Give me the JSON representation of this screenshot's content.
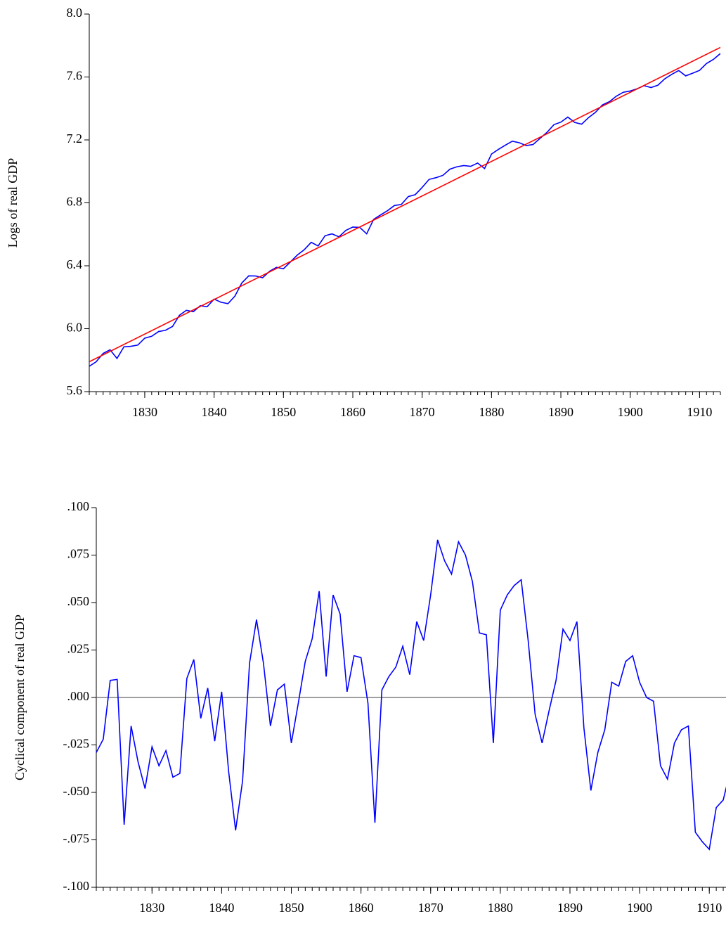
{
  "chart_data": [
    {
      "type": "line",
      "y_label": "Logs of real GDP",
      "x": [
        1822,
        1823,
        1824,
        1825,
        1826,
        1827,
        1828,
        1829,
        1830,
        1831,
        1832,
        1833,
        1834,
        1835,
        1836,
        1837,
        1838,
        1839,
        1840,
        1841,
        1842,
        1843,
        1844,
        1845,
        1846,
        1847,
        1848,
        1849,
        1850,
        1851,
        1852,
        1853,
        1854,
        1855,
        1856,
        1857,
        1858,
        1859,
        1860,
        1861,
        1862,
        1863,
        1864,
        1865,
        1866,
        1867,
        1868,
        1869,
        1870,
        1871,
        1872,
        1873,
        1874,
        1875,
        1876,
        1877,
        1878,
        1879,
        1880,
        1881,
        1882,
        1883,
        1884,
        1885,
        1886,
        1887,
        1888,
        1889,
        1890,
        1891,
        1892,
        1893,
        1894,
        1895,
        1896,
        1897,
        1898,
        1899,
        1900,
        1901,
        1902,
        1903,
        1904,
        1905,
        1906,
        1907,
        1908,
        1909,
        1910,
        1911,
        1912,
        1913
      ],
      "series": [
        {
          "color": "#0000ff",
          "values": [
            5.761,
            5.79,
            5.843,
            5.866,
            5.811,
            5.885,
            5.888,
            5.896,
            5.94,
            5.952,
            5.982,
            5.99,
            6.014,
            6.085,
            6.117,
            6.108,
            6.146,
            6.14,
            6.188,
            6.168,
            6.159,
            6.207,
            6.291,
            6.336,
            6.335,
            6.324,
            6.365,
            6.39,
            6.381,
            6.424,
            6.468,
            6.502,
            6.549,
            6.526,
            6.591,
            6.603,
            6.584,
            6.625,
            6.646,
            6.644,
            6.603,
            6.695,
            6.723,
            6.75,
            6.783,
            6.79,
            6.84,
            6.852,
            6.898,
            6.949,
            6.96,
            6.975,
            7.014,
            7.029,
            7.037,
            7.032,
            7.053,
            7.018,
            7.11,
            7.14,
            7.167,
            7.192,
            7.182,
            7.164,
            7.171,
            7.21,
            7.248,
            7.297,
            7.313,
            7.345,
            7.311,
            7.3,
            7.342,
            7.376,
            7.423,
            7.443,
            7.478,
            7.503,
            7.511,
            7.525,
            7.545,
            7.533,
            7.548,
            7.589,
            7.617,
            7.641,
            7.607,
            7.624,
            7.642,
            7.686,
            7.712,
            7.749
          ]
        },
        {
          "color": "#ff0000",
          "x": [
            1822,
            1913
          ],
          "values": [
            5.79,
            7.788
          ]
        }
      ],
      "xlim": [
        1822,
        1913
      ],
      "xticks": [
        1830,
        1840,
        1850,
        1860,
        1870,
        1880,
        1890,
        1900,
        1910
      ],
      "ylim": [
        5.6,
        8.0
      ],
      "yticks": [
        {
          "value": 5.6,
          "label": "5.6"
        },
        {
          "value": 6,
          "label": "6.0"
        },
        {
          "value": 6.4,
          "label": "6.4"
        },
        {
          "value": 6.8,
          "label": "6.8"
        },
        {
          "value": 7.2,
          "label": "7.2"
        },
        {
          "value": 7.6,
          "label": "7.6"
        },
        {
          "value": 8,
          "label": "8.0"
        }
      ]
    },
    {
      "type": "line",
      "y_label": "Cyclical component of real GDP",
      "x": [
        1822,
        1823,
        1824,
        1825,
        1826,
        1827,
        1828,
        1829,
        1830,
        1831,
        1832,
        1833,
        1834,
        1835,
        1836,
        1837,
        1838,
        1839,
        1840,
        1841,
        1842,
        1843,
        1844,
        1845,
        1846,
        1847,
        1848,
        1849,
        1850,
        1851,
        1852,
        1853,
        1854,
        1855,
        1856,
        1857,
        1858,
        1859,
        1860,
        1861,
        1862,
        1863,
        1864,
        1865,
        1866,
        1867,
        1868,
        1869,
        1870,
        1871,
        1872,
        1873,
        1874,
        1875,
        1876,
        1877,
        1878,
        1879,
        1880,
        1881,
        1882,
        1883,
        1884,
        1885,
        1886,
        1887,
        1888,
        1889,
        1890,
        1891,
        1892,
        1893,
        1894,
        1895,
        1896,
        1897,
        1898,
        1899,
        1900,
        1901,
        1902,
        1903,
        1904,
        1905,
        1906,
        1907,
        1908,
        1909,
        1910,
        1911,
        1912,
        1913
      ],
      "series": [
        {
          "color": "#0000ff",
          "values": [
            -0.029,
            -0.022,
            0.009,
            0.0095,
            -0.067,
            -0.015,
            -0.034,
            -0.048,
            -0.026,
            -0.036,
            -0.028,
            -0.042,
            -0.04,
            0.01,
            0.02,
            -0.011,
            0.005,
            -0.023,
            0.003,
            -0.039,
            -0.07,
            -0.044,
            0.018,
            0.041,
            0.018,
            -0.015,
            0.004,
            0.007,
            -0.024,
            -0.003,
            0.019,
            0.031,
            0.056,
            0.011,
            0.054,
            0.044,
            0.003,
            0.022,
            0.021,
            -0.003,
            -0.066,
            0.004,
            0.011,
            0.016,
            0.027,
            0.012,
            0.04,
            0.03,
            0.054,
            0.083,
            0.072,
            0.065,
            0.082,
            0.075,
            0.061,
            0.034,
            0.033,
            -0.024,
            0.046,
            0.054,
            0.059,
            0.062,
            0.03,
            -0.009,
            -0.024,
            -0.007,
            0.009,
            0.036,
            0.03,
            0.04,
            -0.016,
            -0.049,
            -0.029,
            -0.017,
            0.008,
            0.006,
            0.019,
            0.022,
            0.008,
            0.0,
            -0.002,
            -0.036,
            -0.043,
            -0.024,
            -0.017,
            -0.015,
            -0.071,
            -0.076,
            -0.08,
            -0.058,
            -0.054,
            -0.039
          ]
        }
      ],
      "reference_line": 0,
      "xlim": [
        1822,
        1912.4
      ],
      "xticks": [
        1830,
        1840,
        1850,
        1860,
        1870,
        1880,
        1890,
        1900,
        1910
      ],
      "ylim": [
        -0.1,
        0.1
      ],
      "yticks": [
        {
          "value": -0.1,
          "label": "-.100"
        },
        {
          "value": -0.075,
          "label": "-.075"
        },
        {
          "value": -0.05,
          "label": "-.050"
        },
        {
          "value": -0.025,
          "label": "-.025"
        },
        {
          "value": 0,
          "label": ".000"
        },
        {
          "value": 0.025,
          "label": ".025"
        },
        {
          "value": 0.05,
          "label": ".050"
        },
        {
          "value": 0.075,
          "label": ".075"
        },
        {
          "value": 0.1,
          "label": ".100"
        }
      ]
    }
  ]
}
